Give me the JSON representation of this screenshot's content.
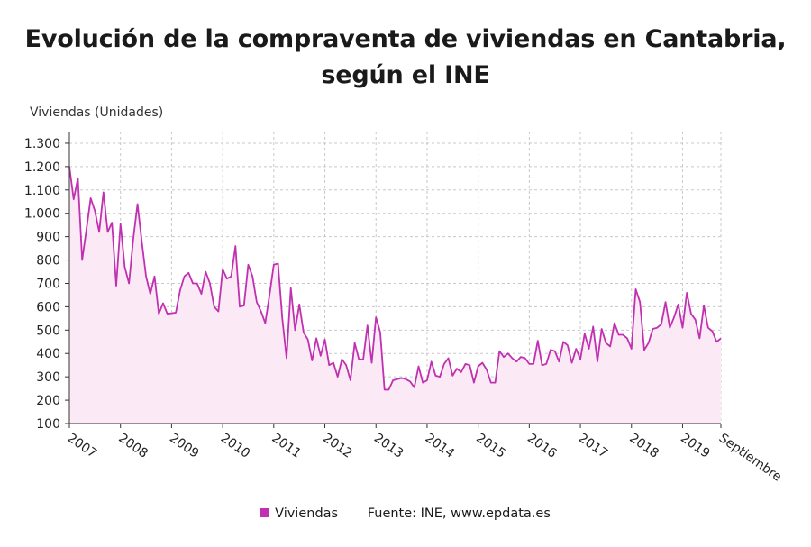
{
  "title_line1": "Evolución de la compraventa de viviendas en Cantabria,",
  "title_line2": "según el INE",
  "source": "Fuente: INE, www.epdata.es",
  "chart_data": {
    "type": "area",
    "ylabel": "Viviendas (Unidades)",
    "ylim": [
      100,
      1350
    ],
    "yticks": [
      100,
      200,
      300,
      400,
      500,
      600,
      700,
      800,
      900,
      1000,
      1100,
      1200,
      1300
    ],
    "ytick_labels": [
      "100",
      "200",
      "300",
      "400",
      "500",
      "600",
      "700",
      "800",
      "900",
      "1.000",
      "1.100",
      "1.200",
      "1.300"
    ],
    "xtick_labels": [
      "2007",
      "2008",
      "2009",
      "2010",
      "2011",
      "2012",
      "2013",
      "2014",
      "2015",
      "2016",
      "2017",
      "2018",
      "2019",
      "Septiembre"
    ],
    "x_start": "2007-01",
    "x_end": "2019-09",
    "grid": true,
    "legend_position": "bottom",
    "line_color": "#c030b0",
    "fill_color": "#fbeaf6",
    "series": [
      {
        "name": "Viviendas",
        "values": [
          1200,
          1060,
          1150,
          800,
          930,
          1065,
          1010,
          920,
          1090,
          920,
          960,
          690,
          955,
          770,
          700,
          890,
          1040,
          880,
          730,
          655,
          730,
          570,
          615,
          570,
          572,
          575,
          670,
          730,
          745,
          700,
          700,
          655,
          750,
          700,
          600,
          580,
          760,
          720,
          730,
          860,
          600,
          605,
          780,
          730,
          620,
          580,
          530,
          650,
          780,
          785,
          550,
          380,
          680,
          500,
          610,
          490,
          460,
          370,
          465,
          390,
          460,
          350,
          360,
          300,
          375,
          350,
          285,
          445,
          375,
          375,
          520,
          360,
          555,
          490,
          245,
          245,
          285,
          290,
          295,
          290,
          280,
          255,
          345,
          275,
          285,
          365,
          305,
          300,
          355,
          380,
          305,
          335,
          320,
          355,
          350,
          275,
          345,
          360,
          330,
          275,
          275,
          410,
          385,
          400,
          380,
          365,
          385,
          380,
          355,
          355,
          455,
          350,
          355,
          415,
          410,
          365,
          450,
          435,
          360,
          420,
          375,
          485,
          420,
          515,
          365,
          505,
          445,
          430,
          530,
          480,
          480,
          465,
          420,
          675,
          620,
          415,
          445,
          505,
          510,
          525,
          620,
          510,
          555,
          610,
          510,
          660,
          570,
          545,
          465,
          605,
          510,
          495,
          450,
          465
        ]
      }
    ]
  }
}
